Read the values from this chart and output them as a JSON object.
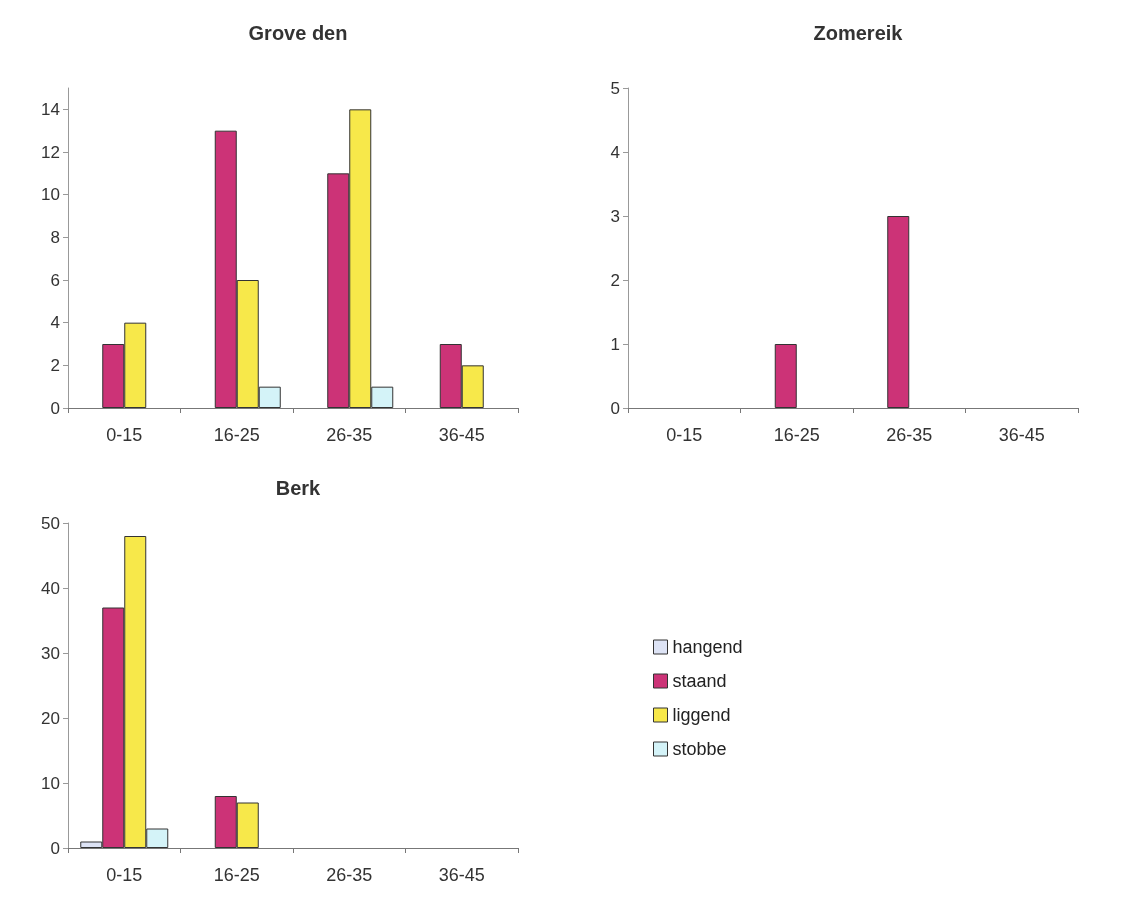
{
  "chart_data": [
    {
      "type": "bar",
      "title": "Grove den",
      "categories": [
        "0-15",
        "16-25",
        "26-35",
        "36-45"
      ],
      "ylim": [
        0,
        15
      ],
      "yticks": [
        0,
        2,
        4,
        6,
        8,
        10,
        12,
        14
      ],
      "grid": false,
      "legend": false,
      "series": [
        {
          "color": "#dde3f5",
          "values": [
            null,
            null,
            null,
            null
          ]
        },
        {
          "color": "#cc3377",
          "values": [
            3,
            13,
            11,
            3
          ]
        },
        {
          "color": "#f7e84a",
          "values": [
            4,
            6,
            14,
            2
          ]
        },
        {
          "color": "#d4f3f8",
          "values": [
            null,
            1,
            1,
            null
          ]
        }
      ]
    },
    {
      "type": "bar",
      "title": "Zomereik",
      "categories": [
        "0-15",
        "16-25",
        "26-35",
        "36-45"
      ],
      "ylim": [
        0,
        5
      ],
      "yticks": [
        0,
        1,
        2,
        3,
        4,
        5
      ],
      "grid": false,
      "legend": false,
      "series": [
        {
          "color": "#dde3f5",
          "values": [
            null,
            null,
            null,
            null
          ]
        },
        {
          "color": "#cc3377",
          "values": [
            null,
            1,
            3,
            null
          ]
        },
        {
          "color": "#f7e84a",
          "values": [
            null,
            null,
            null,
            null
          ]
        },
        {
          "color": "#d4f3f8",
          "values": [
            null,
            null,
            null,
            null
          ]
        }
      ]
    },
    {
      "type": "bar",
      "title": "Berk",
      "categories": [
        "0-15",
        "16-25",
        "26-35",
        "36-45"
      ],
      "ylim": [
        0,
        50
      ],
      "yticks": [
        0,
        10,
        20,
        30,
        40,
        50
      ],
      "grid": false,
      "legend": "right",
      "series": [
        {
          "name": "hangend",
          "color": "#dde3f5",
          "values": [
            1,
            null,
            null,
            null
          ]
        },
        {
          "name": "staand",
          "color": "#cc3377",
          "values": [
            37,
            8,
            null,
            null
          ]
        },
        {
          "name": "liggend",
          "color": "#f7e84a",
          "values": [
            48,
            7,
            null,
            null
          ]
        },
        {
          "name": "stobbe",
          "color": "#d4f3f8",
          "values": [
            3,
            null,
            null,
            null
          ]
        }
      ]
    }
  ]
}
